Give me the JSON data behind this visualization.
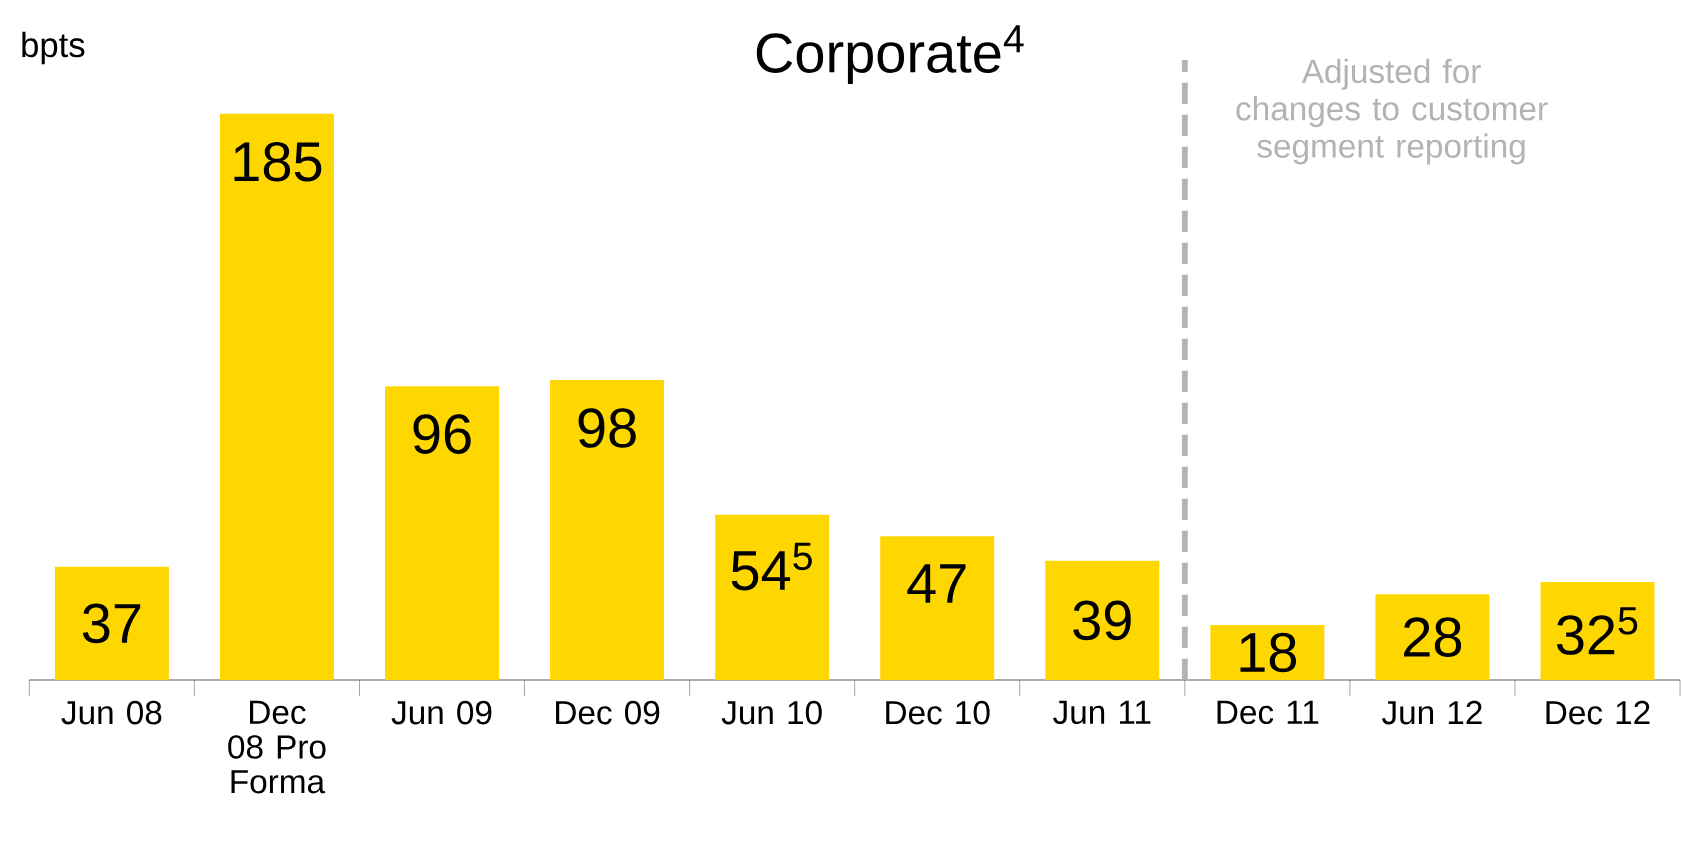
{
  "chart_data": {
    "type": "bar",
    "title": "Corporate$^{4}$",
    "ylabel": "bpts",
    "categories": [
      "Jun 08",
      "Dec 08 Pro Forma",
      "Jun 09",
      "Dec 09",
      "Jun 10",
      "Dec 10",
      "Jun 11",
      "Dec 11",
      "Jun 12",
      "Dec 12"
    ],
    "values": [
      37,
      185,
      96,
      98,
      54,
      47,
      39,
      18,
      28,
      32
    ],
    "value_labels": [
      "37",
      "185",
      "96",
      "98",
      "54$^{5}$",
      "47",
      "39",
      "18",
      "28",
      "32$^{5}$"
    ],
    "color": "#ffd700",
    "annotations": [
      "Adjusted for changes to customer segment reporting"
    ]
  }
}
